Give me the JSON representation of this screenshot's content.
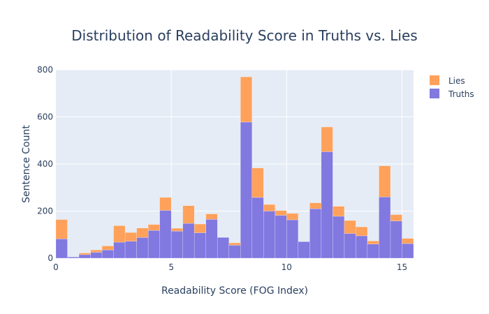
{
  "chart_data": {
    "type": "bar",
    "stacked": true,
    "title": "Distribution of Readability Score in Truths vs. Lies",
    "xlabel": "Readability Score (FOG Index)",
    "ylabel": "Sentence Count",
    "xlim": [
      0,
      15.5
    ],
    "ylim": [
      0,
      800
    ],
    "xticks": [
      0,
      5,
      10,
      15
    ],
    "yticks": [
      0,
      200,
      400,
      600,
      800
    ],
    "grid": true,
    "legend_position": "top-right",
    "bin_width": 0.5,
    "bin_starts": [
      0,
      0.5,
      1,
      1.5,
      2,
      2.5,
      3,
      3.5,
      4,
      4.5,
      5,
      5.5,
      6,
      6.5,
      7,
      7.5,
      8,
      8.5,
      9,
      9.5,
      10,
      10.5,
      11,
      11.5,
      12,
      12.5,
      13,
      13.5,
      14,
      14.5,
      15
    ],
    "series": [
      {
        "name": "Truths",
        "color": "#8178e0",
        "values": [
          82,
          5,
          15,
          25,
          35,
          68,
          72,
          88,
          118,
          203,
          115,
          148,
          108,
          165,
          88,
          55,
          578,
          258,
          200,
          182,
          163,
          70,
          210,
          452,
          178,
          105,
          95,
          60,
          260,
          158,
          62
        ]
      },
      {
        "name": "Lies",
        "color": "#ffa15a",
        "values": [
          82,
          0,
          7,
          10,
          17,
          70,
          37,
          40,
          25,
          55,
          12,
          75,
          37,
          23,
          0,
          10,
          192,
          125,
          28,
          20,
          27,
          0,
          25,
          105,
          42,
          55,
          38,
          13,
          132,
          27,
          22
        ]
      }
    ]
  },
  "legend": {
    "items": [
      {
        "label": "Lies",
        "color": "#ffa15a"
      },
      {
        "label": "Truths",
        "color": "#8178e0"
      }
    ]
  },
  "colors": {
    "plot_background": "#e5ecf6",
    "gridline": "#ffffff",
    "text": "#2a3f5f"
  }
}
